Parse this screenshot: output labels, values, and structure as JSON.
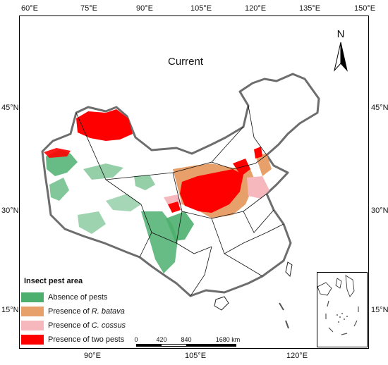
{
  "map": {
    "title": "Current",
    "north_label": "N",
    "longitude_top": [
      "60°E",
      "75°E",
      "90°E",
      "105°E",
      "120°E",
      "135°E",
      "150°E"
    ],
    "longitude_bottom": [
      "90°E",
      "105°E",
      "120°E"
    ],
    "latitude_left": [
      "45°N",
      "30°N",
      "15°N"
    ],
    "latitude_right": [
      "45°N",
      "30°N",
      "15°N"
    ]
  },
  "legend": {
    "title": "Insect pest area",
    "items": [
      {
        "prefix": "Absence of pests",
        "species": "",
        "color": "#4caf6e"
      },
      {
        "prefix": "Presence of ",
        "species": "R. batava",
        "color": "#e8a06a"
      },
      {
        "prefix": "Presence of ",
        "species": "C. cossus",
        "color": "#f7b8bd"
      },
      {
        "prefix": "Presence of two pests",
        "species": "",
        "color": "#ff0000"
      }
    ]
  },
  "scale_bar": {
    "labels": [
      "0",
      "420",
      "840",
      "1680 km"
    ]
  },
  "colors": {
    "absence": "#4caf6e",
    "r_batava": "#e8a06a",
    "c_cossus": "#f7b8bd",
    "two_pests": "#ff0000",
    "border": "#6d6d6d"
  }
}
